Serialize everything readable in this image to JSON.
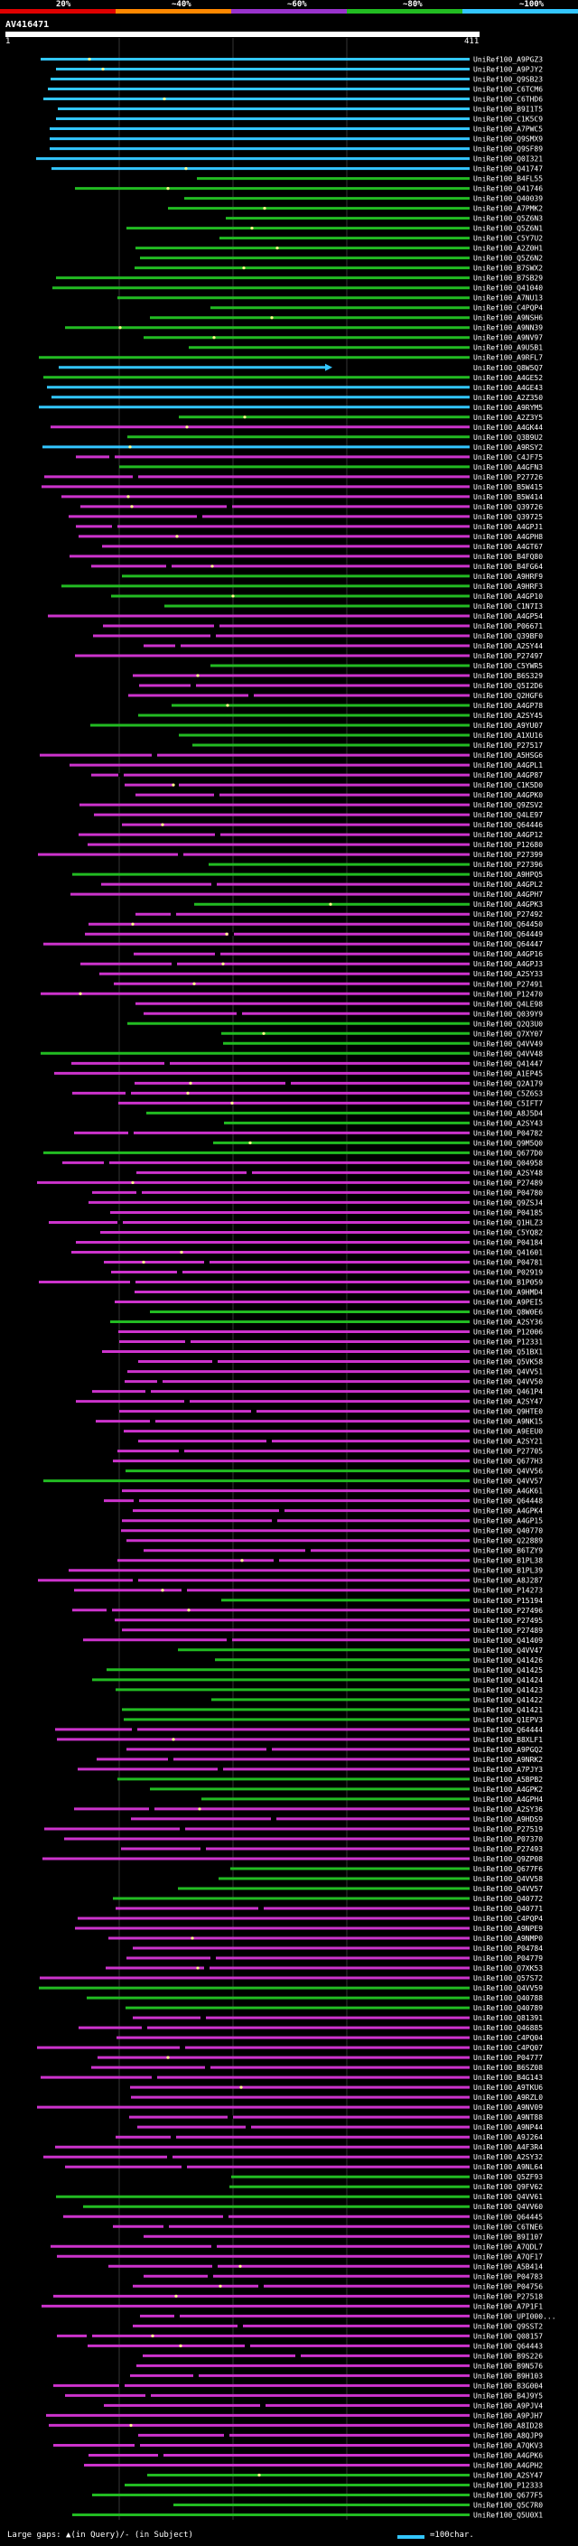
{
  "header": {
    "pct_labels": [
      "20%",
      "~40%",
      "~60%",
      "~80%",
      "~100%"
    ],
    "bar_colors": [
      "#e00000",
      "#ff8800",
      "#9933cc",
      "#22bb22",
      "#33c6ff"
    ],
    "query_name": "AV416471",
    "query_start": "1",
    "query_end": "411"
  },
  "colors": {
    "cyan": "#33c6ff",
    "green": "#22bb22",
    "magenta": "#cc33cc",
    "query": "#ffffff"
  },
  "hits": [
    {
      "label": "UniRef100_A9PGZ3",
      "color": "cyan"
    },
    {
      "label": "UniRef100_A9PJY2",
      "color": "cyan"
    },
    {
      "label": "UniRef100_Q9SB23",
      "color": "cyan"
    },
    {
      "label": "UniRef100_C6TCM6",
      "color": "cyan"
    },
    {
      "label": "UniRef100_C6THD6",
      "color": "cyan"
    },
    {
      "label": "UniRef100_B9I1T5",
      "color": "cyan"
    },
    {
      "label": "UniRef100_C1K5C9",
      "color": "cyan"
    },
    {
      "label": "UniRef100_A7PWC5",
      "color": "cyan"
    },
    {
      "label": "UniRef100_Q9SMX9",
      "color": "cyan"
    },
    {
      "label": "UniRef100_Q9SF89",
      "color": "cyan"
    },
    {
      "label": "UniRef100_Q0I321",
      "color": "cyan"
    },
    {
      "label": "UniRef100_Q41747",
      "color": "cyan"
    },
    {
      "label": "UniRef100_B4FL55",
      "color": "green"
    },
    {
      "label": "UniRef100_Q41746",
      "color": "green"
    },
    {
      "label": "UniRef100_Q40039",
      "color": "green"
    },
    {
      "label": "UniRef100_A7PMK2",
      "color": "green"
    },
    {
      "label": "UniRef100_Q5Z6N3",
      "color": "green"
    },
    {
      "label": "UniRef100_Q5Z6N1",
      "color": "green"
    },
    {
      "label": "UniRef100_C5Y7U2",
      "color": "green"
    },
    {
      "label": "UniRef100_A2Z0H1",
      "color": "green"
    },
    {
      "label": "UniRef100_Q5Z6N2",
      "color": "green"
    },
    {
      "label": "UniRef100_B7SWX2",
      "color": "green"
    },
    {
      "label": "UniRef100_B7SB29",
      "color": "green"
    },
    {
      "label": "UniRef100_Q41040",
      "color": "green"
    },
    {
      "label": "UniRef100_A7NU13",
      "color": "green"
    },
    {
      "label": "UniRef100_C4PQP4",
      "color": "green"
    },
    {
      "label": "UniRef100_A9NSH6",
      "color": "green"
    },
    {
      "label": "UniRef100_A9NN39",
      "color": "green"
    },
    {
      "label": "UniRef100_A9NV97",
      "color": "green"
    },
    {
      "label": "UniRef100_A9U5B1",
      "color": "green"
    },
    {
      "label": "UniRef100_A9RFL7",
      "color": "green"
    },
    {
      "label": "UniRef100_Q8W5Q7",
      "color": "cyan"
    },
    {
      "label": "UniRef100_A4GE52",
      "color": "green"
    },
    {
      "label": "UniRef100_A4GE43",
      "color": "cyan"
    },
    {
      "label": "UniRef100_A2Z350",
      "color": "cyan"
    },
    {
      "label": "UniRef100_A9RYM5",
      "color": "cyan"
    },
    {
      "label": "UniRef100_A2Z3Y5",
      "color": "green"
    },
    {
      "label": "UniRef100_A4GK44",
      "color": "magenta"
    },
    {
      "label": "UniRef100_Q3B9U2",
      "color": "green"
    },
    {
      "label": "UniRef100_A9RSY2",
      "color": "cyan"
    },
    {
      "label": "UniRef100_C4JF75",
      "color": "magenta"
    },
    {
      "label": "UniRef100_A4GFN3",
      "color": "green"
    },
    {
      "label": "UniRef100_P27726",
      "color": "magenta"
    },
    {
      "label": "UniRef100_B5W415",
      "color": "magenta"
    },
    {
      "label": "UniRef100_B5W414",
      "color": "magenta"
    },
    {
      "label": "UniRef100_Q39726",
      "color": "magenta"
    },
    {
      "label": "UniRef100_Q39725",
      "color": "magenta"
    },
    {
      "label": "UniRef100_A4GPJ1",
      "color": "magenta"
    },
    {
      "label": "UniRef100_A4GPH8",
      "color": "magenta"
    },
    {
      "label": "UniRef100_A4GT67",
      "color": "magenta"
    },
    {
      "label": "UniRef100_B4FQ80",
      "color": "magenta"
    },
    {
      "label": "UniRef100_B4FG64",
      "color": "magenta"
    },
    {
      "label": "UniRef100_A9HRF9",
      "color": "green"
    },
    {
      "label": "UniRef100_A9HRF3",
      "color": "green"
    },
    {
      "label": "UniRef100_A4GP10",
      "color": "green"
    },
    {
      "label": "UniRef100_C1N7I3",
      "color": "green"
    },
    {
      "label": "UniRef100_A4GP54",
      "color": "magenta"
    },
    {
      "label": "UniRef100_P06671",
      "color": "magenta"
    },
    {
      "label": "UniRef100_Q39BF0",
      "color": "magenta"
    },
    {
      "label": "UniRef100_A2SY44",
      "color": "magenta"
    },
    {
      "label": "UniRef100_P27497",
      "color": "magenta"
    },
    {
      "label": "UniRef100_C5YWR5",
      "color": "green"
    },
    {
      "label": "UniRef100_B6S329",
      "color": "magenta"
    },
    {
      "label": "UniRef100_Q5I2D6",
      "color": "magenta"
    },
    {
      "label": "UniRef100_Q2HGF6",
      "color": "magenta"
    },
    {
      "label": "UniRef100_A4GP78",
      "color": "green"
    },
    {
      "label": "UniRef100_A2SY45",
      "color": "green"
    },
    {
      "label": "UniRef100_A9YU07",
      "color": "green"
    },
    {
      "label": "UniRef100_A1XU16",
      "color": "green"
    },
    {
      "label": "UniRef100_P27517",
      "color": "green"
    },
    {
      "label": "UniRef100_A5HSG6",
      "color": "magenta"
    },
    {
      "label": "UniRef100_A4GPL1",
      "color": "magenta"
    },
    {
      "label": "UniRef100_A4GP87",
      "color": "magenta"
    },
    {
      "label": "UniRef100_C1K5D0",
      "color": "magenta"
    },
    {
      "label": "UniRef100_A4GPK0",
      "color": "magenta"
    },
    {
      "label": "UniRef100_Q9ZSV2",
      "color": "magenta"
    },
    {
      "label": "UniRef100_Q4LE97",
      "color": "magenta"
    },
    {
      "label": "UniRef100_Q64446",
      "color": "magenta"
    },
    {
      "label": "UniRef100_A4GP12",
      "color": "magenta"
    },
    {
      "label": "UniRef100_P12680",
      "color": "magenta"
    },
    {
      "label": "UniRef100_P27399",
      "color": "magenta"
    },
    {
      "label": "UniRef100_P27396",
      "color": "green"
    },
    {
      "label": "UniRef100_A9HPQ5",
      "color": "green"
    },
    {
      "label": "UniRef100_A4GPL2",
      "color": "magenta"
    },
    {
      "label": "UniRef100_A4GPH7",
      "color": "magenta"
    },
    {
      "label": "UniRef100_A4GPK3",
      "color": "green"
    },
    {
      "label": "UniRef100_P27492",
      "color": "magenta"
    },
    {
      "label": "UniRef100_Q64450",
      "color": "magenta"
    },
    {
      "label": "UniRef100_Q64449",
      "color": "magenta"
    },
    {
      "label": "UniRef100_Q64447",
      "color": "magenta"
    },
    {
      "label": "UniRef100_A4GP16",
      "color": "magenta"
    },
    {
      "label": "UniRef100_A4GPJ3",
      "color": "magenta"
    },
    {
      "label": "UniRef100_A2SY33",
      "color": "magenta"
    },
    {
      "label": "UniRef100_P27491",
      "color": "magenta"
    },
    {
      "label": "UniRef100_P12470",
      "color": "magenta"
    },
    {
      "label": "UniRef100_Q4LE98",
      "color": "magenta"
    },
    {
      "label": "UniRef100_Q039Y9",
      "color": "magenta"
    },
    {
      "label": "UniRef100_Q2Q3U0",
      "color": "green"
    },
    {
      "label": "UniRef100_Q7XY07",
      "color": "green"
    },
    {
      "label": "UniRef100_Q4VV49",
      "color": "green"
    },
    {
      "label": "UniRef100_Q4VV48",
      "color": "green"
    },
    {
      "label": "UniRef100_Q41447",
      "color": "magenta"
    },
    {
      "label": "UniRef100_A1EP45",
      "color": "magenta"
    },
    {
      "label": "UniRef100_Q2A179",
      "color": "magenta"
    },
    {
      "label": "UniRef100_C5Z6S3",
      "color": "magenta"
    },
    {
      "label": "UniRef100_C5IFT7",
      "color": "magenta"
    },
    {
      "label": "UniRef100_A8J5D4",
      "color": "green"
    },
    {
      "label": "UniRef100_A2SY43",
      "color": "green"
    },
    {
      "label": "UniRef100_P04782",
      "color": "magenta"
    },
    {
      "label": "UniRef100_Q9M5Q0",
      "color": "green"
    },
    {
      "label": "UniRef100_Q677D0",
      "color": "green"
    },
    {
      "label": "UniRef100_Q04958",
      "color": "magenta"
    },
    {
      "label": "UniRef100_A2SY48",
      "color": "magenta"
    },
    {
      "label": "UniRef100_P27489",
      "color": "magenta"
    },
    {
      "label": "UniRef100_P04780",
      "color": "magenta"
    },
    {
      "label": "UniRef100_Q9ZSJ4",
      "color": "magenta"
    },
    {
      "label": "UniRef100_P04185",
      "color": "magenta"
    },
    {
      "label": "UniRef100_Q1HLZ3",
      "color": "magenta"
    },
    {
      "label": "UniRef100_C5YQ82",
      "color": "magenta"
    },
    {
      "label": "UniRef100_P04184",
      "color": "magenta"
    },
    {
      "label": "UniRef100_Q41601",
      "color": "magenta"
    },
    {
      "label": "UniRef100_P04781",
      "color": "magenta"
    },
    {
      "label": "UniRef100_P02919",
      "color": "magenta"
    },
    {
      "label": "UniRef100_B1P059",
      "color": "magenta"
    },
    {
      "label": "UniRef100_A9HMD4",
      "color": "magenta"
    },
    {
      "label": "UniRef100_A9PEI5",
      "color": "magenta"
    },
    {
      "label": "UniRef100_Q8W0E6",
      "color": "green"
    },
    {
      "label": "UniRef100_A2SY36",
      "color": "green"
    },
    {
      "label": "UniRef100_P12006",
      "color": "magenta"
    },
    {
      "label": "UniRef100_P12331",
      "color": "magenta"
    },
    {
      "label": "UniRef100_Q51BX1",
      "color": "magenta"
    },
    {
      "label": "UniRef100_Q5VK58",
      "color": "magenta"
    },
    {
      "label": "UniRef100_Q4VV51",
      "color": "magenta"
    },
    {
      "label": "UniRef100_Q4VV50",
      "color": "magenta"
    },
    {
      "label": "UniRef100_Q461P4",
      "color": "magenta"
    },
    {
      "label": "UniRef100_A2SY47",
      "color": "magenta"
    },
    {
      "label": "UniRef100_Q9HTE0",
      "color": "magenta"
    },
    {
      "label": "UniRef100_A9NK15",
      "color": "magenta"
    },
    {
      "label": "UniRef100_A9EEU0",
      "color": "magenta"
    },
    {
      "label": "UniRef100_A2SY21",
      "color": "magenta"
    },
    {
      "label": "UniRef100_P27705",
      "color": "magenta"
    },
    {
      "label": "UniRef100_Q677H3",
      "color": "magenta"
    },
    {
      "label": "UniRef100_Q4VV56",
      "color": "green"
    },
    {
      "label": "UniRef100_Q4VV57",
      "color": "green"
    },
    {
      "label": "UniRef100_A4GK61",
      "color": "magenta"
    },
    {
      "label": "UniRef100_Q64448",
      "color": "magenta"
    },
    {
      "label": "UniRef100_A4GPK4",
      "color": "magenta"
    },
    {
      "label": "UniRef100_A4GP15",
      "color": "magenta"
    },
    {
      "label": "UniRef100_Q40770",
      "color": "magenta"
    },
    {
      "label": "UniRef100_Q22889",
      "color": "magenta"
    },
    {
      "label": "UniRef100_B6TZY9",
      "color": "magenta"
    },
    {
      "label": "UniRef100_B1PL38",
      "color": "magenta"
    },
    {
      "label": "UniRef100_B1PL39",
      "color": "magenta"
    },
    {
      "label": "UniRef100_A8J287",
      "color": "magenta"
    },
    {
      "label": "UniRef100_P14273",
      "color": "magenta"
    },
    {
      "label": "UniRef100_P15194",
      "color": "green"
    },
    {
      "label": "UniRef100_P27496",
      "color": "magenta"
    },
    {
      "label": "UniRef100_P27495",
      "color": "magenta"
    },
    {
      "label": "UniRef100_P27489",
      "color": "magenta"
    },
    {
      "label": "UniRef100_Q41409",
      "color": "magenta"
    },
    {
      "label": "UniRef100_Q4VV47",
      "color": "green"
    },
    {
      "label": "UniRef100_Q41426",
      "color": "green"
    },
    {
      "label": "UniRef100_Q41425",
      "color": "green"
    },
    {
      "label": "UniRef100_Q41424",
      "color": "green"
    },
    {
      "label": "UniRef100_Q41423",
      "color": "green"
    },
    {
      "label": "UniRef100_Q41422",
      "color": "green"
    },
    {
      "label": "UniRef100_Q41421",
      "color": "green"
    },
    {
      "label": "UniRef100_Q1EPV3",
      "color": "green"
    },
    {
      "label": "UniRef100_Q64444",
      "color": "magenta"
    },
    {
      "label": "UniRef100_B8XLF1",
      "color": "magenta"
    },
    {
      "label": "UniRef100_A9PGQ2",
      "color": "magenta"
    },
    {
      "label": "UniRef100_A9NRK2",
      "color": "magenta"
    },
    {
      "label": "UniRef100_A7PJY3",
      "color": "magenta"
    },
    {
      "label": "UniRef100_A5BPB2",
      "color": "green"
    },
    {
      "label": "UniRef100_A4GPK2",
      "color": "green"
    },
    {
      "label": "UniRef100_A4GPH4",
      "color": "green"
    },
    {
      "label": "UniRef100_A2SY36",
      "color": "magenta"
    },
    {
      "label": "UniRef100_A9HDS9",
      "color": "magenta"
    },
    {
      "label": "UniRef100_P27519",
      "color": "magenta"
    },
    {
      "label": "UniRef100_P07370",
      "color": "magenta"
    },
    {
      "label": "UniRef100_P27493",
      "color": "magenta"
    },
    {
      "label": "UniRef100_Q9ZP08",
      "color": "magenta"
    },
    {
      "label": "UniRef100_Q677F6",
      "color": "green"
    },
    {
      "label": "UniRef100_Q4VV58",
      "color": "green"
    },
    {
      "label": "UniRef100_Q4VV57",
      "color": "green"
    },
    {
      "label": "UniRef100_Q40772",
      "color": "green"
    },
    {
      "label": "UniRef100_Q40771",
      "color": "magenta"
    },
    {
      "label": "UniRef100_C4PQP4",
      "color": "magenta"
    },
    {
      "label": "UniRef100_A9NPE9",
      "color": "magenta"
    },
    {
      "label": "UniRef100_A9NMP0",
      "color": "magenta"
    },
    {
      "label": "UniRef100_P04784",
      "color": "magenta"
    },
    {
      "label": "UniRef100_P04779",
      "color": "magenta"
    },
    {
      "label": "UniRef100_Q7XK53",
      "color": "magenta"
    },
    {
      "label": "UniRef100_Q57S72",
      "color": "magenta"
    },
    {
      "label": "UniRef100_Q4VV59",
      "color": "green"
    },
    {
      "label": "UniRef100_Q40788",
      "color": "green"
    },
    {
      "label": "UniRef100_Q40789",
      "color": "green"
    },
    {
      "label": "UniRef100_Q81391",
      "color": "magenta"
    },
    {
      "label": "UniRef100_Q46885",
      "color": "magenta"
    },
    {
      "label": "UniRef100_C4PQ04",
      "color": "magenta"
    },
    {
      "label": "UniRef100_C4PQ07",
      "color": "magenta"
    },
    {
      "label": "UniRef100_P04777",
      "color": "magenta"
    },
    {
      "label": "UniRef100_B6SZ08",
      "color": "magenta"
    },
    {
      "label": "UniRef100_B4G143",
      "color": "magenta"
    },
    {
      "label": "UniRef100_A9TKU6",
      "color": "magenta"
    },
    {
      "label": "UniRef100_A9RZL0",
      "color": "magenta"
    },
    {
      "label": "UniRef100_A9NV09",
      "color": "magenta"
    },
    {
      "label": "UniRef100_A9NT88",
      "color": "magenta"
    },
    {
      "label": "UniRef100_A9NP44",
      "color": "magenta"
    },
    {
      "label": "UniRef100_A9J264",
      "color": "magenta"
    },
    {
      "label": "UniRef100_A4F3R4",
      "color": "magenta"
    },
    {
      "label": "UniRef100_A2SY32",
      "color": "magenta"
    },
    {
      "label": "UniRef100_A9NL64",
      "color": "magenta"
    },
    {
      "label": "UniRef100_Q5ZF93",
      "color": "green"
    },
    {
      "label": "UniRef100_Q9FV62",
      "color": "green"
    },
    {
      "label": "UniRef100_Q4VV61",
      "color": "green"
    },
    {
      "label": "UniRef100_Q4VV60",
      "color": "green"
    },
    {
      "label": "UniRef100_Q64445",
      "color": "magenta"
    },
    {
      "label": "UniRef100_C6TNE6",
      "color": "magenta"
    },
    {
      "label": "UniRef100_B9I107",
      "color": "magenta"
    },
    {
      "label": "UniRef100_A7QDL7",
      "color": "magenta"
    },
    {
      "label": "UniRef100_A7QF17",
      "color": "magenta"
    },
    {
      "label": "UniRef100_A5B414",
      "color": "magenta"
    },
    {
      "label": "UniRef100_P04783",
      "color": "magenta"
    },
    {
      "label": "UniRef100_P04756",
      "color": "magenta"
    },
    {
      "label": "UniRef100_P27518",
      "color": "magenta"
    },
    {
      "label": "UniRef100_A7P1F1",
      "color": "magenta"
    },
    {
      "label": "UniRef100_UPI000...",
      "color": "magenta"
    },
    {
      "label": "UniRef100_Q9SST2",
      "color": "magenta"
    },
    {
      "label": "UniRef100_Q08157",
      "color": "magenta"
    },
    {
      "label": "UniRef100_Q64443",
      "color": "magenta"
    },
    {
      "label": "UniRef100_B9S226",
      "color": "magenta"
    },
    {
      "label": "UniRef100_B9N576",
      "color": "magenta"
    },
    {
      "label": "UniRef100_B9H103",
      "color": "magenta"
    },
    {
      "label": "UniRef100_B3G004",
      "color": "magenta"
    },
    {
      "label": "UniRef100_B4J9Y5",
      "color": "magenta"
    },
    {
      "label": "UniRef100_A9PJV4",
      "color": "magenta"
    },
    {
      "label": "UniRef100_A9PJH7",
      "color": "magenta"
    },
    {
      "label": "UniRef100_A8ID28",
      "color": "magenta"
    },
    {
      "label": "UniRef100_A8QJP9",
      "color": "magenta"
    },
    {
      "label": "UniRef100_A7QKV3",
      "color": "magenta"
    },
    {
      "label": "UniRef100_A4GPK6",
      "color": "magenta"
    },
    {
      "label": "UniRef100_A4GPH2",
      "color": "magenta"
    },
    {
      "label": "UniRef100_A2SY47",
      "color": "green"
    },
    {
      "label": "UniRef100_P12333",
      "color": "green"
    },
    {
      "label": "UniRef100_Q677F5",
      "color": "green"
    },
    {
      "label": "UniRef100_Q5C7R0",
      "color": "green"
    },
    {
      "label": "UniRef100_Q5U0X1",
      "color": "green"
    }
  ],
  "footer": {
    "gaps_text": "Large gaps: ▲(in Query)/- (in Subject)",
    "scale_text": "=100char."
  }
}
